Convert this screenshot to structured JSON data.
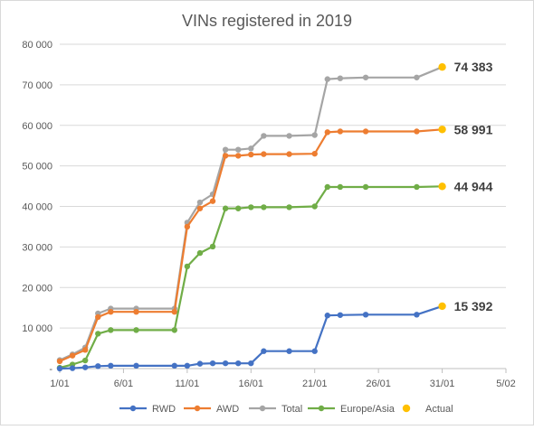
{
  "chart_data": {
    "type": "line",
    "title": "VINs registered in 2019",
    "xlabel": "",
    "ylabel": "",
    "xlim": [
      1,
      36
    ],
    "ylim": [
      0,
      80000
    ],
    "x_ticks": [
      {
        "x": 1,
        "label": "1/01"
      },
      {
        "x": 6,
        "label": "6/01"
      },
      {
        "x": 11,
        "label": "11/01"
      },
      {
        "x": 16,
        "label": "16/01"
      },
      {
        "x": 21,
        "label": "21/01"
      },
      {
        "x": 26,
        "label": "26/01"
      },
      {
        "x": 31,
        "label": "31/01"
      },
      {
        "x": 36,
        "label": "5/02"
      }
    ],
    "y_ticks": [
      {
        "value": 0,
        "label": "-"
      },
      {
        "value": 10000,
        "label": "10 000"
      },
      {
        "value": 20000,
        "label": "20 000"
      },
      {
        "value": 30000,
        "label": "30 000"
      },
      {
        "value": 40000,
        "label": "40 000"
      },
      {
        "value": 50000,
        "label": "50 000"
      },
      {
        "value": 60000,
        "label": "60 000"
      },
      {
        "value": 70000,
        "label": "70 000"
      },
      {
        "value": 80000,
        "label": "80 000"
      }
    ],
    "grid": true,
    "legend_position": "bottom",
    "x": [
      1,
      2,
      3,
      4,
      5,
      7,
      10,
      11,
      12,
      13,
      14,
      15,
      16,
      17,
      19,
      21,
      22,
      23,
      25,
      29,
      31
    ],
    "series": [
      {
        "name": "RWD",
        "color": "#4472C4",
        "values": [
          0,
          100,
          300,
          600,
          700,
          700,
          700,
          700,
          1200,
          1300,
          1300,
          1300,
          1300,
          4300,
          4300,
          4300,
          13100,
          13200,
          13300,
          13300,
          15392
        ]
      },
      {
        "name": "AWD",
        "color": "#ED7D31",
        "values": [
          1800,
          3200,
          4600,
          12700,
          14000,
          14000,
          14000,
          35000,
          39500,
          41300,
          52500,
          52500,
          52800,
          52900,
          52900,
          53000,
          58300,
          58500,
          58500,
          58500,
          58991
        ]
      },
      {
        "name": "Total",
        "color": "#A5A5A5",
        "values": [
          2100,
          3500,
          5200,
          13600,
          14800,
          14800,
          14800,
          36000,
          41000,
          43000,
          54000,
          54000,
          54300,
          57400,
          57400,
          57600,
          71400,
          71600,
          71800,
          71800,
          74383
        ]
      },
      {
        "name": "Europe/Asia",
        "color": "#70AD47",
        "values": [
          200,
          1000,
          2000,
          8600,
          9500,
          9500,
          9500,
          25200,
          28500,
          30100,
          39500,
          39500,
          39800,
          39800,
          39800,
          40000,
          44800,
          44800,
          44800,
          44800,
          44944
        ]
      }
    ],
    "actual": {
      "name": "Actual",
      "color": "#FFC000",
      "x": 31,
      "points": [
        {
          "value": 74383,
          "label": "74 383"
        },
        {
          "value": 58991,
          "label": "58 991"
        },
        {
          "value": 44944,
          "label": "44 944"
        },
        {
          "value": 15392,
          "label": "15 392"
        }
      ]
    }
  }
}
